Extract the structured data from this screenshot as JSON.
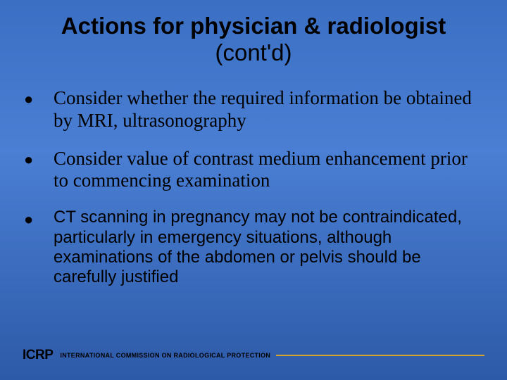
{
  "slide": {
    "title_line1": "Actions for physician & radiologist",
    "title_line2": "(cont'd)",
    "background_gradient": {
      "top": "#3a6fc4",
      "mid": "#4a7fd4",
      "bottom": "#2d5aa8"
    },
    "bullets": [
      {
        "text": "Consider whether the required information be obtained by MRI, ultrasonography",
        "font_family": "Times New Roman",
        "font_size_pt": 20
      },
      {
        "text": "Consider value of contrast medium enhancement prior to commencing examination",
        "font_family": "Times New Roman",
        "font_size_pt": 20
      },
      {
        "text": "CT scanning in pregnancy may  not be contraindicated, particularly in emergency situations, although examinations of the abdomen or pelvis should be carefully justified",
        "font_family": "Arial",
        "font_size_pt": 18
      }
    ],
    "bullet_marker": "●",
    "text_color": "#000000"
  },
  "footer": {
    "logo_text": "ICRP",
    "org_text": "INTERNATIONAL COMMISSION ON RADIOLOGICAL PROTECTION",
    "accent_color": "#d4a52a",
    "line_color": "#d4a52a"
  }
}
